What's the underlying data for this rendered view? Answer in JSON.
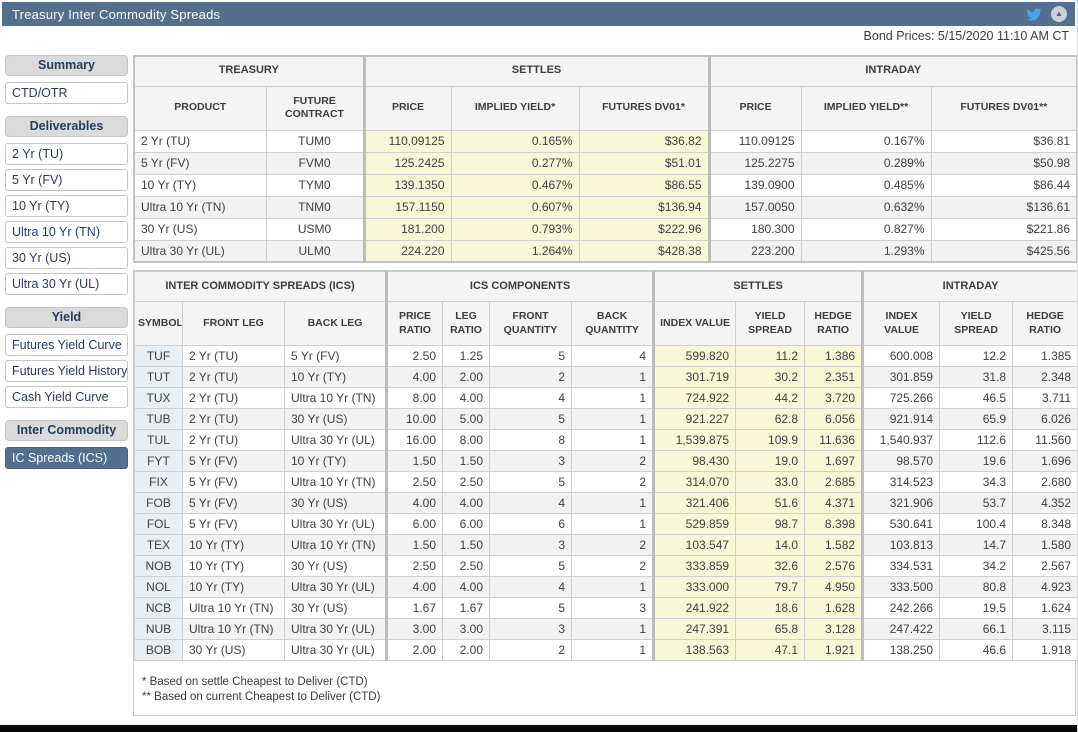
{
  "header": {
    "title": "Treasury Inter Commodity Spreads",
    "bond_prices": "Bond Prices: 5/15/2020 11:10 AM CT"
  },
  "icons": {
    "twitter": "twitter-bird-icon",
    "collapse": "chevron-up-circle-icon",
    "collapse_glyph": "▲"
  },
  "colors": {
    "titlebar": "#546F8D",
    "selected_nav": "#546F8D",
    "settle_highlight": "#F8F7D8",
    "symbol_column": "#E9EEF3",
    "twitter_blue": "#4AA1EB"
  },
  "sidebar": {
    "sections": [
      {
        "header": "Summary",
        "items": [
          {
            "label": "CTD/OTR",
            "selected": false
          }
        ]
      },
      {
        "header": "Deliverables",
        "items": [
          {
            "label": "2 Yr (TU)",
            "selected": false
          },
          {
            "label": "5 Yr (FV)",
            "selected": false
          },
          {
            "label": "10 Yr (TY)",
            "selected": false
          },
          {
            "label": "Ultra 10 Yr (TN)",
            "selected": false
          },
          {
            "label": "30 Yr (US)",
            "selected": false
          },
          {
            "label": "Ultra 30 Yr (UL)",
            "selected": false
          }
        ]
      },
      {
        "header": "Yield",
        "items": [
          {
            "label": "Futures Yield Curve",
            "selected": false
          },
          {
            "label": "Futures Yield History",
            "selected": false
          },
          {
            "label": "Cash Yield Curve",
            "selected": false
          }
        ]
      },
      {
        "header": "Inter Commodity",
        "items": [
          {
            "label": "IC Spreads (ICS)",
            "selected": true
          }
        ]
      }
    ]
  },
  "treasury_table": {
    "groups": [
      {
        "label": "TREASURY",
        "span": 2
      },
      {
        "label": "SETTLES",
        "span": 3
      },
      {
        "label": "INTRADAY",
        "span": 3
      }
    ],
    "columns": [
      "PRODUCT",
      "FUTURE CONTRACT",
      "PRICE",
      "IMPLIED YIELD*",
      "FUTURES DV01*",
      "PRICE",
      "IMPLIED YIELD**",
      "FUTURES DV01**"
    ],
    "rows": [
      [
        "2 Yr (TU)",
        "TUM0",
        "110.09125",
        "0.165%",
        "$36.82",
        "110.09125",
        "0.167%",
        "$36.81"
      ],
      [
        "5 Yr (FV)",
        "FVM0",
        "125.2425",
        "0.277%",
        "$51.01",
        "125.2275",
        "0.289%",
        "$50.98"
      ],
      [
        "10 Yr (TY)",
        "TYM0",
        "139.1350",
        "0.467%",
        "$86.55",
        "139.0900",
        "0.485%",
        "$86.44"
      ],
      [
        "Ultra 10 Yr (TN)",
        "TNM0",
        "157.1150",
        "0.607%",
        "$136.94",
        "157.0050",
        "0.632%",
        "$136.61"
      ],
      [
        "30 Yr (US)",
        "USM0",
        "181.200",
        "0.793%",
        "$222.96",
        "180.300",
        "0.827%",
        "$221.86"
      ],
      [
        "Ultra 30 Yr (UL)",
        "ULM0",
        "224.220",
        "1.264%",
        "$428.38",
        "223.200",
        "1.293%",
        "$425.56"
      ]
    ]
  },
  "ics_table": {
    "groups": [
      {
        "label": "INTER COMMODITY SPREADS (ICS)",
        "span": 3
      },
      {
        "label": "ICS COMPONENTS",
        "span": 4
      },
      {
        "label": "SETTLES",
        "span": 3
      },
      {
        "label": "INTRADAY",
        "span": 3
      }
    ],
    "columns": [
      "SYMBOL",
      "FRONT LEG",
      "BACK LEG",
      "PRICE RATIO",
      "LEG RATIO",
      "FRONT QUANTITY",
      "BACK QUANTITY",
      "INDEX VALUE",
      "YIELD SPREAD",
      "HEDGE RATIO",
      "INDEX VALUE",
      "YIELD SPREAD",
      "HEDGE RATIO"
    ],
    "rows": [
      [
        "TUF",
        "2 Yr (TU)",
        "5 Yr (FV)",
        "2.50",
        "1.25",
        "5",
        "4",
        "599.820",
        "11.2",
        "1.386",
        "600.008",
        "12.2",
        "1.385"
      ],
      [
        "TUT",
        "2 Yr (TU)",
        "10 Yr (TY)",
        "4.00",
        "2.00",
        "2",
        "1",
        "301.719",
        "30.2",
        "2.351",
        "301.859",
        "31.8",
        "2.348"
      ],
      [
        "TUX",
        "2 Yr (TU)",
        "Ultra 10 Yr (TN)",
        "8.00",
        "4.00",
        "4",
        "1",
        "724.922",
        "44.2",
        "3.720",
        "725.266",
        "46.5",
        "3.711"
      ],
      [
        "TUB",
        "2 Yr (TU)",
        "30 Yr (US)",
        "10.00",
        "5.00",
        "5",
        "1",
        "921.227",
        "62.8",
        "6.056",
        "921.914",
        "65.9",
        "6.026"
      ],
      [
        "TUL",
        "2 Yr (TU)",
        "Ultra 30 Yr (UL)",
        "16.00",
        "8.00",
        "8",
        "1",
        "1,539.875",
        "109.9",
        "11.636",
        "1,540.937",
        "112.6",
        "11.560"
      ],
      [
        "FYT",
        "5 Yr (FV)",
        "10 Yr (TY)",
        "1.50",
        "1.50",
        "3",
        "2",
        "98.430",
        "19.0",
        "1.697",
        "98.570",
        "19.6",
        "1.696"
      ],
      [
        "FIX",
        "5 Yr (FV)",
        "Ultra 10 Yr (TN)",
        "2.50",
        "2.50",
        "5",
        "2",
        "314.070",
        "33.0",
        "2.685",
        "314.523",
        "34.3",
        "2.680"
      ],
      [
        "FOB",
        "5 Yr (FV)",
        "30 Yr (US)",
        "4.00",
        "4.00",
        "4",
        "1",
        "321.406",
        "51.6",
        "4.371",
        "321.906",
        "53.7",
        "4.352"
      ],
      [
        "FOL",
        "5 Yr (FV)",
        "Ultra 30 Yr (UL)",
        "6.00",
        "6.00",
        "6",
        "1",
        "529.859",
        "98.7",
        "8.398",
        "530.641",
        "100.4",
        "8.348"
      ],
      [
        "TEX",
        "10 Yr (TY)",
        "Ultra 10 Yr (TN)",
        "1.50",
        "1.50",
        "3",
        "2",
        "103.547",
        "14.0",
        "1.582",
        "103.813",
        "14.7",
        "1.580"
      ],
      [
        "NOB",
        "10 Yr (TY)",
        "30 Yr (US)",
        "2.50",
        "2.50",
        "5",
        "2",
        "333.859",
        "32.6",
        "2.576",
        "334.531",
        "34.2",
        "2.567"
      ],
      [
        "NOL",
        "10 Yr (TY)",
        "Ultra 30 Yr (UL)",
        "4.00",
        "4.00",
        "4",
        "1",
        "333.000",
        "79.7",
        "4.950",
        "333.500",
        "80.8",
        "4.923"
      ],
      [
        "NCB",
        "Ultra 10 Yr (TN)",
        "30 Yr (US)",
        "1.67",
        "1.67",
        "5",
        "3",
        "241.922",
        "18.6",
        "1.628",
        "242.266",
        "19.5",
        "1.624"
      ],
      [
        "NUB",
        "Ultra 10 Yr (TN)",
        "Ultra 30 Yr (UL)",
        "3.00",
        "3.00",
        "3",
        "1",
        "247.391",
        "65.8",
        "3.128",
        "247.422",
        "66.1",
        "3.115"
      ],
      [
        "BOB",
        "30 Yr (US)",
        "Ultra 30 Yr (UL)",
        "2.00",
        "2.00",
        "2",
        "1",
        "138.563",
        "47.1",
        "1.921",
        "138.250",
        "46.6",
        "1.918"
      ]
    ]
  },
  "footnotes": [
    "* Based on settle Cheapest to Deliver (CTD)",
    "** Based on current Cheapest to Deliver (CTD)"
  ]
}
